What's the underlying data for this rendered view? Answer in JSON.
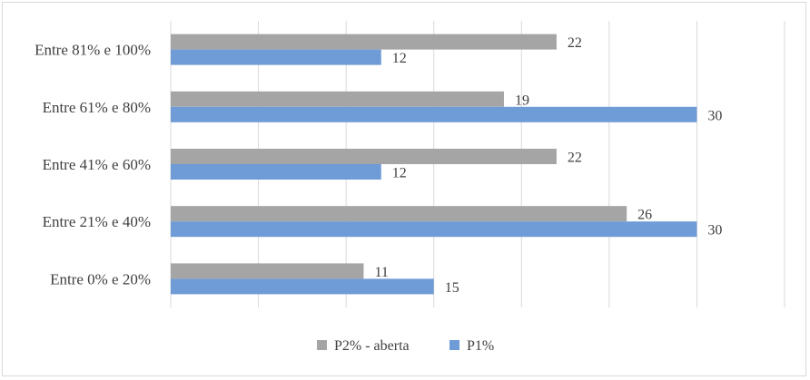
{
  "chart_data": {
    "type": "bar",
    "orientation": "horizontal",
    "title": "",
    "xlabel": "",
    "ylabel": "",
    "categories": [
      "Entre 0% e 20%",
      "Entre 21% e 40%",
      "Entre 41% e 60%",
      "Entre 61% e 80%",
      "Entre 81% e 100%"
    ],
    "series": [
      {
        "name": "P2% - aberta",
        "color": "#a5a5a5",
        "values": [
          11,
          26,
          22,
          19,
          22
        ]
      },
      {
        "name": "P1%",
        "color": "#6f9bd6",
        "values": [
          15,
          30,
          12,
          30,
          12
        ]
      }
    ],
    "xlim": [
      0,
      35
    ],
    "tick_step": 5,
    "grid": true,
    "gridline_color": "#d9d9d9",
    "legend_placement": "bottom",
    "data_labels": true,
    "tick_labels_shown": false
  }
}
